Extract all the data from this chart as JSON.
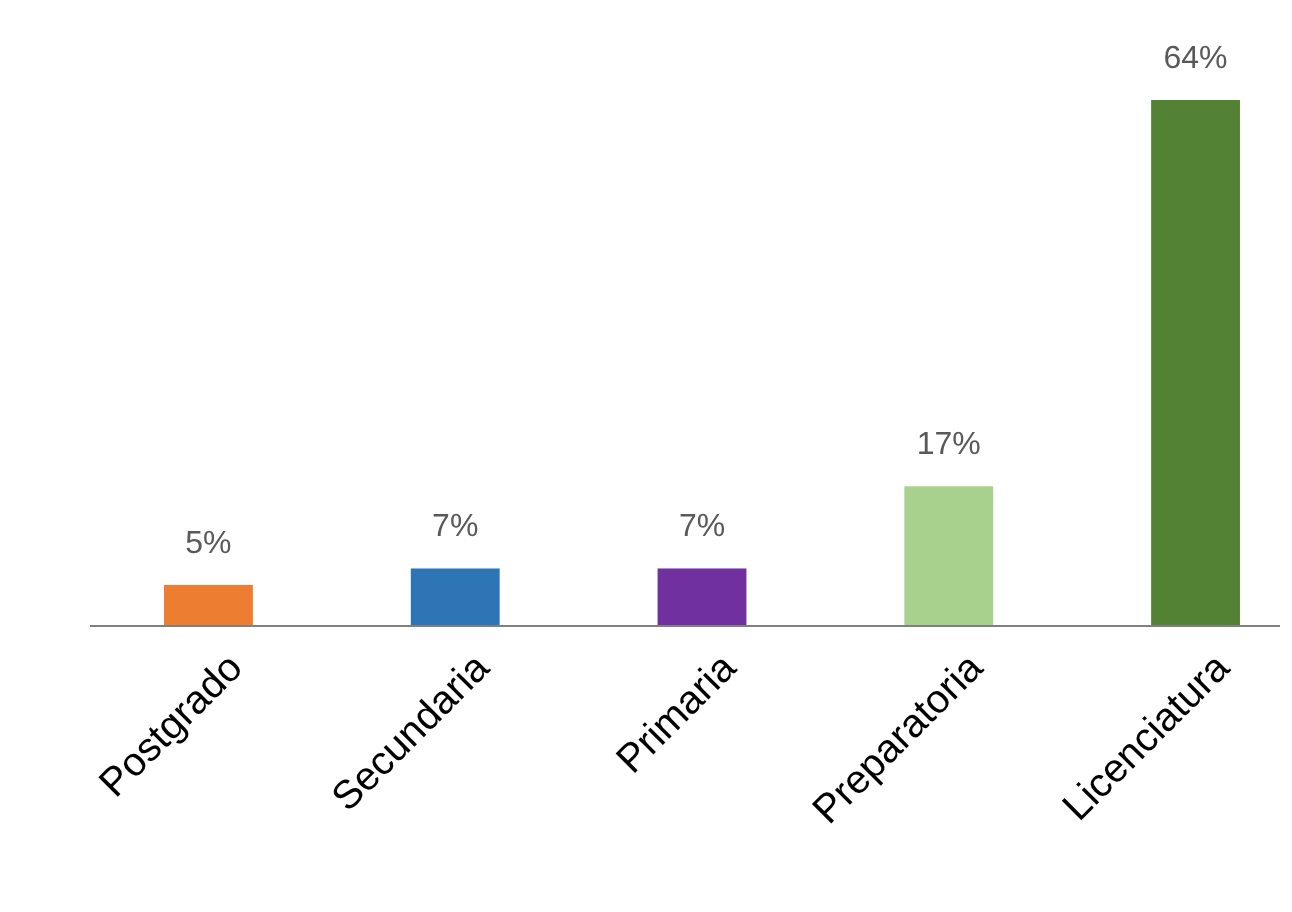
{
  "chart_data": {
    "type": "bar",
    "categories": [
      "Postgrado",
      "Secundaria",
      "Primaria",
      "Preparatoria",
      "Licenciatura"
    ],
    "values": [
      5,
      7,
      7,
      17,
      64
    ],
    "colors": [
      "#ed7d31",
      "#2e75b6",
      "#7030a0",
      "#a9d18e",
      "#548235"
    ],
    "value_labels": [
      "5%",
      "7%",
      "7%",
      "17%",
      "64%"
    ]
  }
}
